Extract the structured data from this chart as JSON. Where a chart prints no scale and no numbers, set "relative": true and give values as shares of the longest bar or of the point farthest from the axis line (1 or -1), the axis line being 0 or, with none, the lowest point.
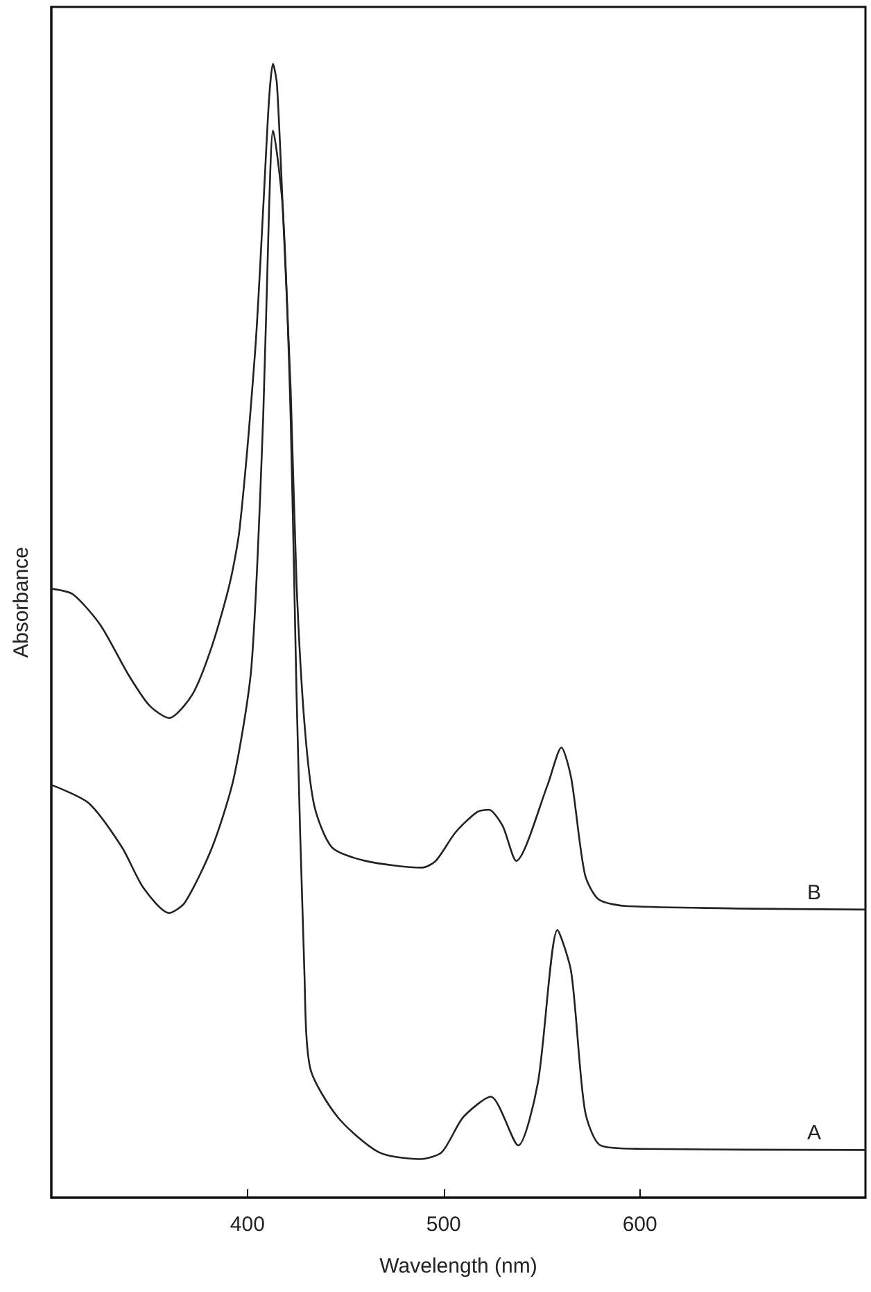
{
  "chart_data": {
    "type": "line",
    "relative": true,
    "xlabel": "Wavelength (nm)",
    "ylabel": "Absorbance",
    "xlim": [
      300,
      715
    ],
    "xticks": [
      400,
      500,
      600
    ],
    "grid": false,
    "legend": false,
    "marker": "none",
    "line_style": "solid",
    "tick_labels": "x",
    "series": [
      {
        "name": "B",
        "color": "#222222",
        "x": [
          300,
          311,
          325,
          339,
          350,
          360,
          372,
          382,
          391,
          396,
          404,
          408,
          411,
          413,
          415,
          418,
          422,
          425,
          429,
          434,
          443,
          460,
          489,
          496,
          506,
          517,
          523,
          530,
          537,
          553,
          560,
          565,
          572,
          579,
          594,
          715
        ],
        "values": [
          0.537,
          0.532,
          0.505,
          0.462,
          0.434,
          0.423,
          0.444,
          0.487,
          0.542,
          0.59,
          0.749,
          0.872,
          0.969,
          1,
          0.982,
          0.872,
          0.713,
          0.542,
          0.419,
          0.346,
          0.309,
          0.297,
          0.291,
          0.297,
          0.322,
          0.34,
          0.342,
          0.328,
          0.297,
          0.364,
          0.397,
          0.37,
          0.285,
          0.263,
          0.257,
          0.254
        ]
      },
      {
        "name": "A",
        "color": "#222222",
        "x": [
          300,
          319,
          336,
          347,
          360,
          368,
          382,
          393,
          402,
          408,
          411,
          413,
          418,
          422,
          425,
          429,
          432,
          446,
          467,
          488,
          499,
          510,
          524,
          538,
          548,
          558,
          565,
          572,
          580,
          601,
          715
        ],
        "values": [
          0.364,
          0.348,
          0.309,
          0.273,
          0.251,
          0.26,
          0.309,
          0.37,
          0.468,
          0.688,
          0.872,
          0.941,
          0.872,
          0.688,
          0.444,
          0.199,
          0.114,
          0.071,
          0.04,
          0.034,
          0.04,
          0.071,
          0.089,
          0.046,
          0.101,
          0.236,
          0.199,
          0.077,
          0.046,
          0.043,
          0.042
        ]
      }
    ]
  }
}
